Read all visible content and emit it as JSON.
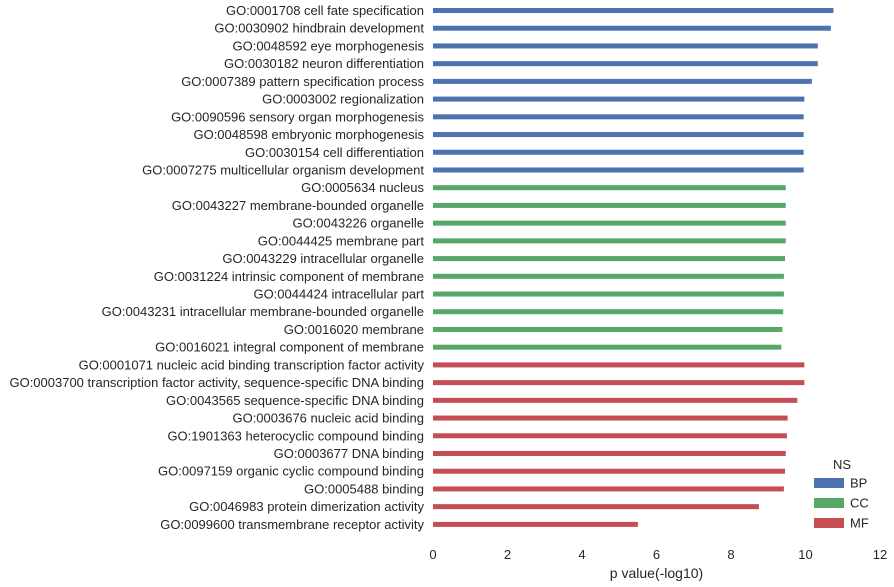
{
  "chart_data": {
    "type": "bar",
    "orientation": "horizontal",
    "xlabel": "p value(-log10)",
    "xlim": [
      0,
      12
    ],
    "xticks": [
      "0",
      "2",
      "4",
      "6",
      "8",
      "10",
      "12"
    ],
    "grid": false,
    "legend": {
      "title": "NS",
      "placement": "bottom-right",
      "entries": [
        {
          "name": "BP",
          "color": "#4c72b0"
        },
        {
          "name": "CC",
          "color": "#55a868"
        },
        {
          "name": "MF",
          "color": "#c44e52"
        }
      ]
    },
    "categories": [
      {
        "label": "GO:0001708 cell fate specification",
        "ns": "BP",
        "value": 10.75
      },
      {
        "label": "GO:0030902 hindbrain development",
        "ns": "BP",
        "value": 10.68
      },
      {
        "label": "GO:0048592 eye morphogenesis",
        "ns": "BP",
        "value": 10.33
      },
      {
        "label": "GO:0030182 neuron differentiation",
        "ns": "BP",
        "value": 10.33
      },
      {
        "label": "GO:0007389 pattern specification process",
        "ns": "BP",
        "value": 10.17
      },
      {
        "label": "GO:0003002 regionalization",
        "ns": "BP",
        "value": 9.97
      },
      {
        "label": "GO:0090596 sensory organ morphogenesis",
        "ns": "BP",
        "value": 9.95
      },
      {
        "label": "GO:0048598 embryonic morphogenesis",
        "ns": "BP",
        "value": 9.95
      },
      {
        "label": "GO:0030154 cell differentiation",
        "ns": "BP",
        "value": 9.95
      },
      {
        "label": "GO:0007275 multicellular organism development",
        "ns": "BP",
        "value": 9.95
      },
      {
        "label": "GO:0005634 nucleus",
        "ns": "CC",
        "value": 9.47
      },
      {
        "label": "GO:0043227 membrane-bounded organelle",
        "ns": "CC",
        "value": 9.47
      },
      {
        "label": "GO:0043226 organelle",
        "ns": "CC",
        "value": 9.47
      },
      {
        "label": "GO:0044425 membrane part",
        "ns": "CC",
        "value": 9.47
      },
      {
        "label": "GO:0043229 intracellular organelle",
        "ns": "CC",
        "value": 9.45
      },
      {
        "label": "GO:0031224 intrinsic component of membrane",
        "ns": "CC",
        "value": 9.42
      },
      {
        "label": "GO:0044424 intracellular part",
        "ns": "CC",
        "value": 9.42
      },
      {
        "label": "GO:0043231 intracellular membrane-bounded organelle",
        "ns": "CC",
        "value": 9.4
      },
      {
        "label": "GO:0016020 membrane",
        "ns": "CC",
        "value": 9.38
      },
      {
        "label": "GO:0016021 integral component of membrane",
        "ns": "CC",
        "value": 9.35
      },
      {
        "label": "GO:0001071 nucleic acid binding transcription factor activity",
        "ns": "MF",
        "value": 9.97
      },
      {
        "label": "GO:0003700 transcription factor activity, sequence-specific DNA binding",
        "ns": "MF",
        "value": 9.97
      },
      {
        "label": "GO:0043565 sequence-specific DNA binding",
        "ns": "MF",
        "value": 9.78
      },
      {
        "label": "GO:0003676 nucleic acid binding",
        "ns": "MF",
        "value": 9.52
      },
      {
        "label": "GO:1901363 heterocyclic compound binding",
        "ns": "MF",
        "value": 9.5
      },
      {
        "label": "GO:0003677 DNA binding",
        "ns": "MF",
        "value": 9.47
      },
      {
        "label": "GO:0097159 organic cyclic compound binding",
        "ns": "MF",
        "value": 9.45
      },
      {
        "label": "GO:0005488 binding",
        "ns": "MF",
        "value": 9.42
      },
      {
        "label": "GO:0046983 protein dimerization activity",
        "ns": "MF",
        "value": 8.75
      },
      {
        "label": "GO:0099600 transmembrane receptor activity",
        "ns": "MF",
        "value": 5.5
      }
    ]
  }
}
